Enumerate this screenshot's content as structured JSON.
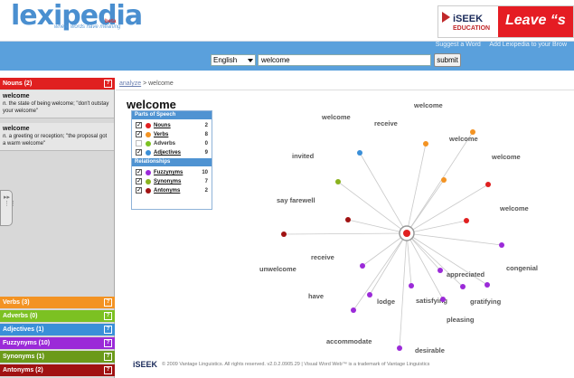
{
  "header": {
    "logo": "lexipedia",
    "beta": "beta",
    "tagline": "where words have meaning",
    "ad": {
      "brand": "iSEEK",
      "sub": "EDUCATION",
      "slogan": "Leave “s"
    }
  },
  "searchbar": {
    "links": [
      "Suggest a Word",
      "Add Lexipedia to your Brow"
    ],
    "language": "English",
    "query": "welcome",
    "submit": "submit"
  },
  "left": {
    "nouns_bar": "Nouns (2)",
    "help": "?",
    "definitions": [
      {
        "word": "welcome",
        "pos": "n.",
        "text": "the state of being welcome; \"don't outstay your welcome\""
      },
      {
        "word": "welcome",
        "pos": "n.",
        "text": "a greeting or reception; \"the proposal got a warm welcome\""
      }
    ],
    "categories": [
      {
        "label": "Verbs (3)",
        "color": "#f39323"
      },
      {
        "label": "Adverbs (0)",
        "color": "#7cc122"
      },
      {
        "label": "Adjectives (1)",
        "color": "#3a8fd8"
      },
      {
        "label": "Fuzzynyms (10)",
        "color": "#9b2ad8"
      },
      {
        "label": "Synonyms (1)",
        "color": "#6b9a1a"
      },
      {
        "label": "Antonyms (2)",
        "color": "#a01212"
      }
    ],
    "nouns_color": "#e02020"
  },
  "main": {
    "breadcrumb_link": "analyze",
    "breadcrumb_sep": " > ",
    "breadcrumb_current": "welcome",
    "headword": "welcome",
    "legend": {
      "pos_title": "Parts of Speech",
      "pos": [
        {
          "label": "Nouns",
          "count": "2",
          "checked": true,
          "color": "#e02020",
          "link": true
        },
        {
          "label": "Verbs",
          "count": "8",
          "checked": true,
          "color": "#f39323",
          "link": true
        },
        {
          "label": "Adverbs",
          "count": "0",
          "checked": false,
          "color": "#7cc122",
          "link": false
        },
        {
          "label": "Adjectives",
          "count": "9",
          "checked": true,
          "color": "#3a8fd8",
          "link": true
        }
      ],
      "rel_title": "Relationships",
      "rel": [
        {
          "label": "Fuzzynyms",
          "count": "10",
          "checked": true,
          "color": "#9b2ad8",
          "link": true
        },
        {
          "label": "Synonyms",
          "count": "7",
          "checked": true,
          "color": "#8ab21e",
          "link": true
        },
        {
          "label": "Antonyms",
          "count": "2",
          "checked": true,
          "color": "#a01212",
          "link": true
        }
      ]
    },
    "graph_words": [
      "welcome",
      "receive",
      "welcome",
      "welcome",
      "invited",
      "welcome",
      "say farewell",
      "welcome",
      "unwelcome",
      "receive",
      "congenial",
      "appreciated",
      "have",
      "lodge",
      "satisfying",
      "gratifying",
      "pleasing",
      "accommodate",
      "desirable"
    ]
  },
  "footer": {
    "brand": "iSEEK",
    "text": "© 2009 Vantage Linguistics. All rights reserved. v2.0.2.0905.29 | Visual Word Web™ is a trademark of Vantage Linguistics"
  }
}
